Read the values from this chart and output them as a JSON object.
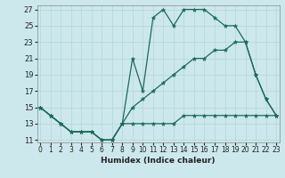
{
  "xlabel": "Humidex (Indice chaleur)",
  "background_color": "#cce8ec",
  "grid_color": "#add4d8",
  "line_color": "#1a6b5a",
  "xlim": [
    0,
    23
  ],
  "ylim": [
    11,
    27
  ],
  "xticks": [
    0,
    1,
    2,
    3,
    4,
    5,
    6,
    7,
    8,
    9,
    10,
    11,
    12,
    13,
    14,
    15,
    16,
    17,
    18,
    19,
    20,
    21,
    22,
    23
  ],
  "yticks": [
    11,
    13,
    15,
    17,
    19,
    21,
    23,
    25,
    27
  ],
  "line1_x": [
    0,
    1,
    2,
    3,
    4,
    5,
    6,
    7,
    8,
    9,
    10,
    11,
    12,
    13,
    14,
    15,
    16,
    17,
    18,
    19,
    20,
    21,
    22,
    23
  ],
  "line1_y": [
    15,
    14,
    13,
    12,
    12,
    12,
    11,
    11,
    13,
    21,
    17,
    26,
    27,
    25,
    27,
    27,
    27,
    26,
    25,
    25,
    23,
    19,
    16,
    14
  ],
  "line2_x": [
    0,
    1,
    2,
    3,
    4,
    5,
    6,
    7,
    8,
    9,
    10,
    11,
    12,
    13,
    14,
    15,
    16,
    17,
    18,
    19,
    20,
    21,
    22,
    23
  ],
  "line2_y": [
    15,
    14,
    13,
    12,
    12,
    12,
    11,
    11,
    13,
    13,
    13,
    13,
    13,
    13,
    14,
    14,
    14,
    14,
    14,
    14,
    14,
    14,
    14,
    14
  ],
  "line3_x": [
    0,
    1,
    2,
    3,
    4,
    5,
    6,
    7,
    8,
    9,
    10,
    11,
    12,
    13,
    14,
    15,
    16,
    17,
    18,
    19,
    20,
    21,
    22,
    23
  ],
  "line3_y": [
    15,
    14,
    13,
    12,
    12,
    12,
    11,
    11,
    13,
    15,
    16,
    17,
    18,
    19,
    20,
    21,
    21,
    22,
    22,
    23,
    23,
    19,
    16,
    14
  ],
  "marker_size": 3.5,
  "line_width": 0.9,
  "tick_fontsize": 5.5,
  "xlabel_fontsize": 6.5
}
